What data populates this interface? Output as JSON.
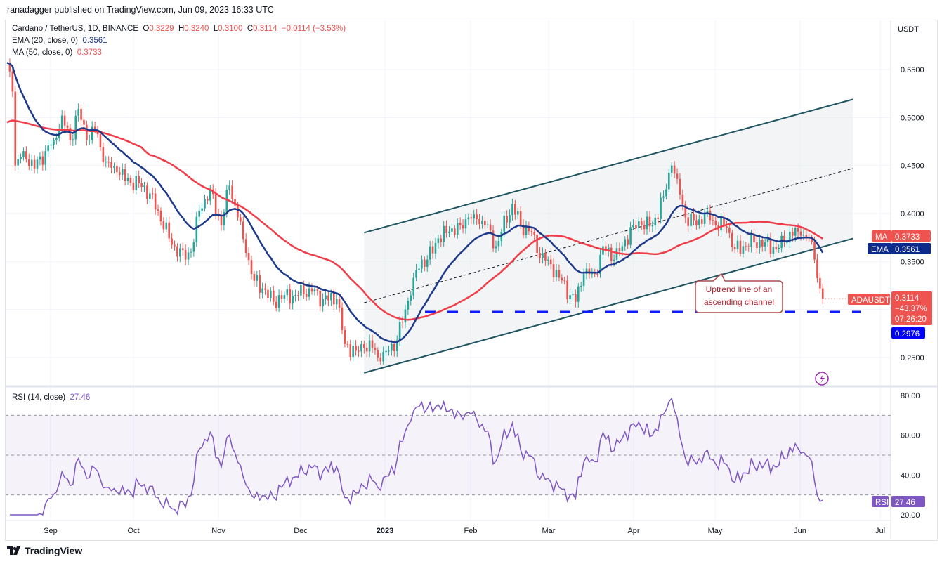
{
  "published": "ranadagger published on TradingView.com, Jun 09, 2023 16:33 UTC",
  "legend": {
    "symbol": "Cardano / TetherUS, 1D, BINANCE",
    "o_label": "O",
    "open": "0.3229",
    "h_label": "H",
    "high": "0.3240",
    "l_label": "L",
    "low": "0.3100",
    "c_label": "C",
    "close": "0.3114",
    "change": "−0.0114 (−3.53%)",
    "ema_label": "EMA (20, close, 0)",
    "ema_value": "0.3561",
    "ma_label": "MA (50, close, 0)",
    "ma_value": "0.3733",
    "rsi_label": "RSI (14, close)",
    "rsi_value": "27.46"
  },
  "axis": {
    "currency": "USDT",
    "price_ticks": [
      "0.5500",
      "0.5000",
      "0.4500",
      "0.4000",
      "0.3500",
      "0.2500"
    ],
    "rsi_ticks": [
      "80.00",
      "60.00",
      "40.00",
      "20.00"
    ],
    "time_ticks": [
      "Sep",
      "Oct",
      "Nov",
      "Dec",
      "2023",
      "Feb",
      "Mar",
      "Apr",
      "May",
      "Jun",
      "Jul"
    ]
  },
  "tags": {
    "ma_name": "MA",
    "ma_value": "0.3733",
    "ema_name": "EMA",
    "ema_value": "0.3561",
    "symbol_name": "ADAUSDT",
    "price": "0.3114",
    "pct": "−43.37%",
    "countdown": "07:26:20",
    "support": "0.2976",
    "rsi_name": "RSI",
    "rsi_value": "27.46"
  },
  "annotation": "Uptrend line of an ascending channel",
  "footer": "TradingView",
  "colors": {
    "up": "#26a69a",
    "down": "#ef5350",
    "ema": "#1e3a8a",
    "ma": "#ef3e4a",
    "channel": "#1f5460",
    "support": "#0d1dff",
    "rsi": "#7e57c2"
  },
  "chart_data": {
    "type": "candlestick",
    "title": "Cardano / TetherUS, 1D, BINANCE",
    "x_unit": "days since 2022-08-16",
    "ylim": [
      0.22,
      0.58
    ],
    "closes_keypoints": [
      [
        0,
        0.557
      ],
      [
        2,
        0.527
      ],
      [
        3,
        0.45
      ],
      [
        6,
        0.465
      ],
      [
        10,
        0.447
      ],
      [
        14,
        0.465
      ],
      [
        17,
        0.476
      ],
      [
        20,
        0.502
      ],
      [
        23,
        0.476
      ],
      [
        26,
        0.509
      ],
      [
        29,
        0.476
      ],
      [
        32,
        0.487
      ],
      [
        36,
        0.454
      ],
      [
        40,
        0.443
      ],
      [
        45,
        0.432
      ],
      [
        50,
        0.429
      ],
      [
        55,
        0.403
      ],
      [
        59,
        0.374
      ],
      [
        61,
        0.366
      ],
      [
        65,
        0.352
      ],
      [
        68,
        0.37
      ],
      [
        70,
        0.403
      ],
      [
        74,
        0.425
      ],
      [
        78,
        0.388
      ],
      [
        81,
        0.429
      ],
      [
        84,
        0.396
      ],
      [
        87,
        0.359
      ],
      [
        90,
        0.33
      ],
      [
        93,
        0.322
      ],
      [
        97,
        0.308
      ],
      [
        101,
        0.315
      ],
      [
        105,
        0.315
      ],
      [
        110,
        0.322
      ],
      [
        115,
        0.311
      ],
      [
        120,
        0.311
      ],
      [
        123,
        0.264
      ],
      [
        127,
        0.257
      ],
      [
        130,
        0.26
      ],
      [
        133,
        0.26
      ],
      [
        136,
        0.246
      ],
      [
        139,
        0.257
      ],
      [
        142,
        0.268
      ],
      [
        145,
        0.3
      ],
      [
        148,
        0.333
      ],
      [
        151,
        0.352
      ],
      [
        153,
        0.352
      ],
      [
        157,
        0.374
      ],
      [
        161,
        0.381
      ],
      [
        165,
        0.388
      ],
      [
        168,
        0.396
      ],
      [
        170,
        0.399
      ],
      [
        174,
        0.388
      ],
      [
        178,
        0.366
      ],
      [
        180,
        0.381
      ],
      [
        184,
        0.41
      ],
      [
        187,
        0.388
      ],
      [
        191,
        0.381
      ],
      [
        193,
        0.359
      ],
      [
        197,
        0.352
      ],
      [
        201,
        0.333
      ],
      [
        205,
        0.315
      ],
      [
        207,
        0.308
      ],
      [
        210,
        0.337
      ],
      [
        214,
        0.337
      ],
      [
        217,
        0.366
      ],
      [
        221,
        0.352
      ],
      [
        224,
        0.366
      ],
      [
        228,
        0.388
      ],
      [
        231,
        0.388
      ],
      [
        235,
        0.388
      ],
      [
        239,
        0.418
      ],
      [
        242,
        0.45
      ],
      [
        244,
        0.436
      ],
      [
        247,
        0.396
      ],
      [
        251,
        0.388
      ],
      [
        255,
        0.403
      ],
      [
        258,
        0.388
      ],
      [
        262,
        0.385
      ],
      [
        265,
        0.363
      ],
      [
        268,
        0.366
      ],
      [
        272,
        0.37
      ],
      [
        276,
        0.37
      ],
      [
        280,
        0.363
      ],
      [
        283,
        0.37
      ],
      [
        285,
        0.381
      ],
      [
        289,
        0.377
      ],
      [
        292,
        0.374
      ],
      [
        294,
        0.352
      ],
      [
        296,
        0.322
      ],
      [
        297,
        0.3114
      ]
    ],
    "channel": {
      "start_day": 130,
      "end_day": 308,
      "upper": [
        0.38,
        0.519
      ],
      "middle": [
        0.307,
        0.447
      ],
      "lower": [
        0.234,
        0.374
      ]
    },
    "support_level": 0.2976,
    "indicators": {
      "ema20": 0.3561,
      "ma50": 0.3733,
      "rsi14": 27.46,
      "rsi_bands": [
        30,
        70
      ]
    }
  }
}
